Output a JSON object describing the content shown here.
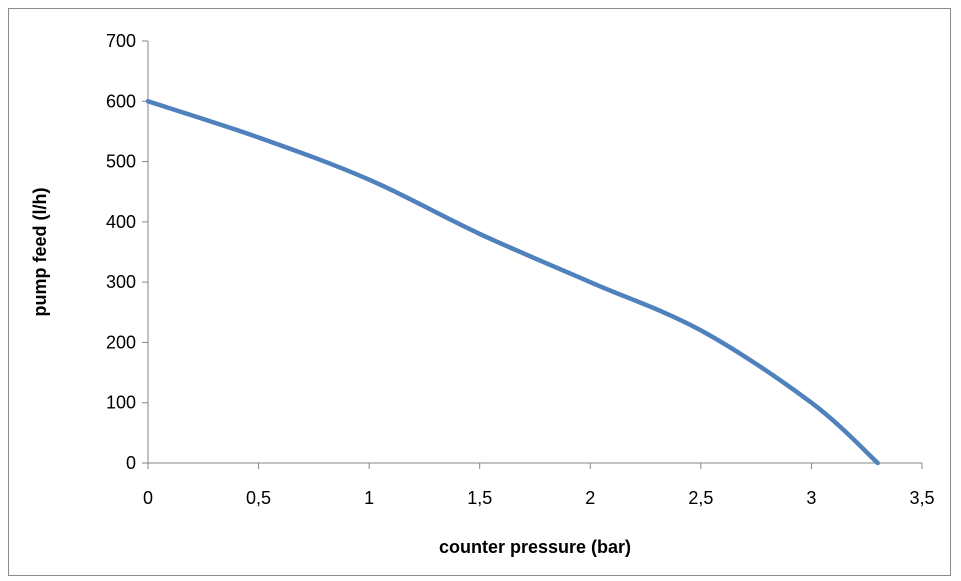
{
  "chart_data": {
    "type": "line",
    "title": "",
    "xlabel": "counter pressure (bar)",
    "ylabel": "pump feed (l/h)",
    "xlim": [
      0,
      3.5
    ],
    "ylim": [
      0,
      700
    ],
    "x_ticks": [
      "0",
      "0,5",
      "1",
      "1,5",
      "2",
      "2,5",
      "3",
      "3,5"
    ],
    "y_ticks": [
      "0",
      "100",
      "200",
      "300",
      "400",
      "500",
      "600",
      "700"
    ],
    "grid": false,
    "legend": "none",
    "series": [
      {
        "color": "#4f81bd",
        "x": [
          0,
          0.5,
          1,
          1.5,
          2,
          2.5,
          3,
          3.3
        ],
        "y": [
          600,
          540,
          470,
          380,
          300,
          220,
          100,
          0
        ]
      }
    ]
  }
}
